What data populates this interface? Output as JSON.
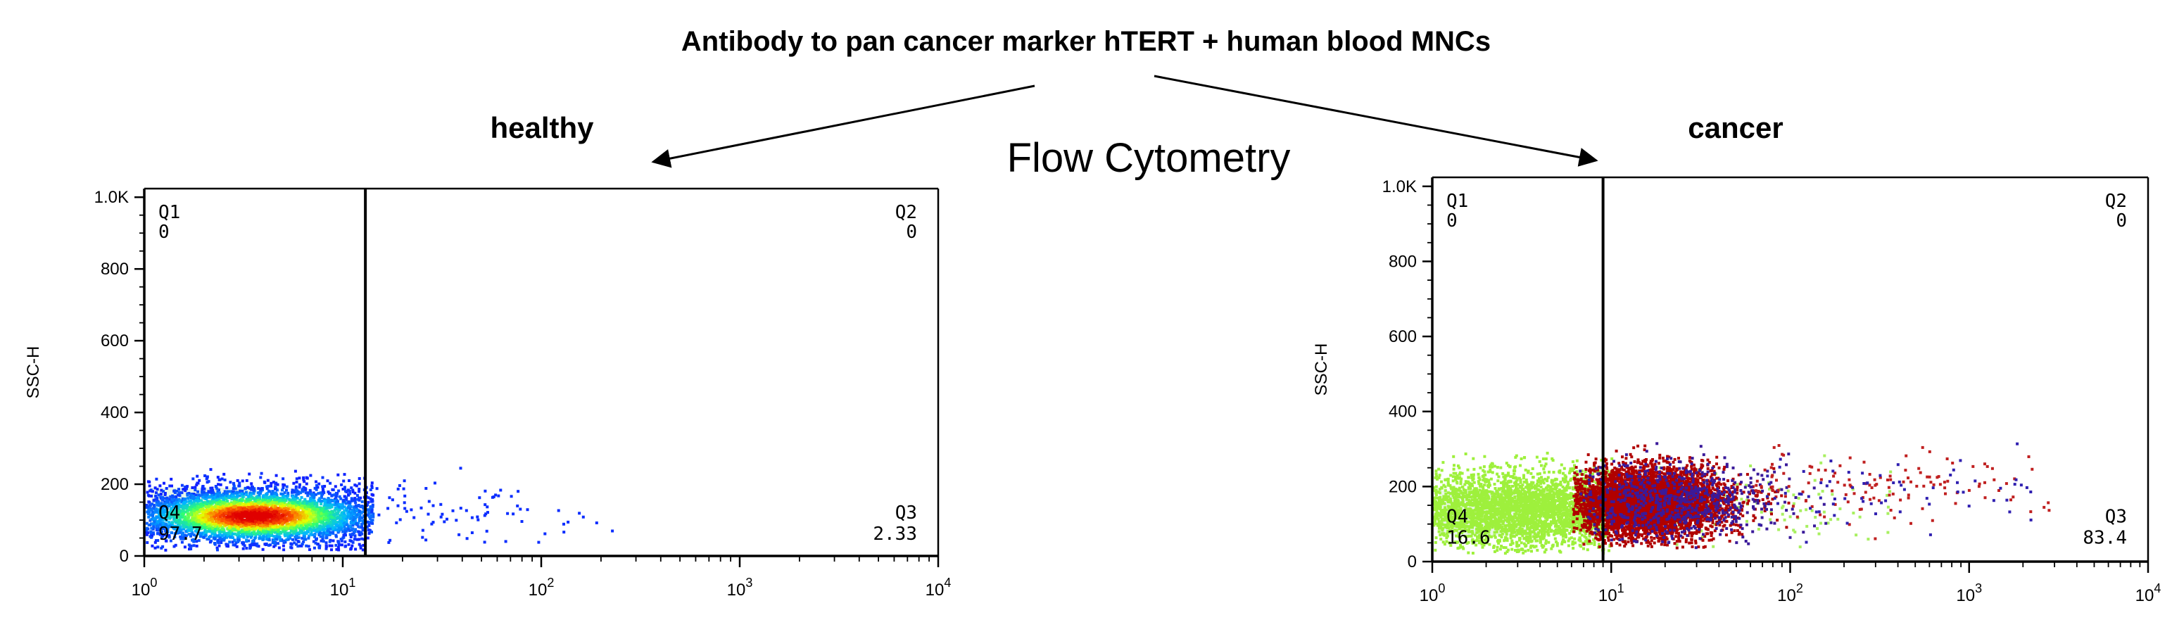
{
  "figure": {
    "header": "Antibody to pan cancer marker hTERT + human blood MNCs",
    "method_label": "Flow Cytometry",
    "colors": {
      "axis": "#000000",
      "gate_fill": "#e8f6e8"
    }
  },
  "chart_data": [
    {
      "type": "scatter",
      "title": "healthy",
      "ylabel": "SSC-H",
      "xlabel": "",
      "xscale": "log",
      "xlim": [
        1,
        10000
      ],
      "ylim": [
        0,
        1024
      ],
      "x_ticks": [
        1,
        10,
        100,
        1000,
        10000
      ],
      "x_tick_labels": [
        {
          "base": "10",
          "exp": "0"
        },
        {
          "base": "10",
          "exp": "1"
        },
        {
          "base": "10",
          "exp": "2"
        },
        {
          "base": "10",
          "exp": "3"
        },
        {
          "base": "10",
          "exp": "4"
        }
      ],
      "y_ticks": [
        0,
        200,
        400,
        600,
        800,
        1000
      ],
      "y_tick_labels": [
        "0",
        "200",
        "400",
        "600",
        "800",
        "1.0K"
      ],
      "gate": {
        "x": 13,
        "y": 0
      },
      "quadrants": [
        {
          "id": "Q1",
          "value": "0",
          "placement": "top-left"
        },
        {
          "id": "Q2",
          "value": "0",
          "placement": "top-right"
        },
        {
          "id": "Q3",
          "value": "2.33",
          "placement": "bottom-right"
        },
        {
          "id": "Q4",
          "value": "97.7",
          "placement": "bottom-left"
        }
      ],
      "populations": [
        {
          "kind": "density",
          "center_log_x": 0.55,
          "spread_log_x": 0.34,
          "center_y": 115,
          "spread_y": 42,
          "count": 4200,
          "min_log_x": 0.0,
          "max_log_x": 1.15,
          "min_y": 20,
          "max_y": 250,
          "colormap": [
            "#1020ff",
            "#00b8ff",
            "#30ff70",
            "#e8ff00",
            "#ff6000",
            "#e00000"
          ]
        },
        {
          "kind": "sparse",
          "center_log_x": 1.4,
          "spread_log_x": 0.35,
          "center_y": 130,
          "spread_y": 45,
          "count": 80,
          "min_log_x": 1.12,
          "max_log_x": 2.6,
          "min_y": 40,
          "max_y": 260,
          "color": "#0b2dff"
        }
      ]
    },
    {
      "type": "scatter",
      "title": "cancer",
      "ylabel": "SSC-H",
      "xlabel": "",
      "xscale": "log",
      "xlim": [
        1,
        10000
      ],
      "ylim": [
        0,
        1024
      ],
      "x_ticks": [
        1,
        10,
        100,
        1000,
        10000
      ],
      "x_tick_labels": [
        {
          "base": "10",
          "exp": "0"
        },
        {
          "base": "10",
          "exp": "1"
        },
        {
          "base": "10",
          "exp": "2"
        },
        {
          "base": "10",
          "exp": "3"
        },
        {
          "base": "10",
          "exp": "4"
        }
      ],
      "y_ticks": [
        0,
        200,
        400,
        600,
        800,
        1000
      ],
      "y_tick_labels": [
        "0",
        "200",
        "400",
        "600",
        "800",
        "1.0K"
      ],
      "gate": {
        "x": 9,
        "y": 0
      },
      "quadrants": [
        {
          "id": "Q1",
          "value": "0",
          "placement": "top-left"
        },
        {
          "id": "Q2",
          "value": "0",
          "placement": "top-right"
        },
        {
          "id": "Q3",
          "value": "83.4",
          "placement": "bottom-right"
        },
        {
          "id": "Q4",
          "value": "16.6",
          "placement": "bottom-left"
        }
      ],
      "populations": [
        {
          "kind": "sparse",
          "center_log_x": 0.5,
          "spread_log_x": 0.4,
          "center_y": 140,
          "spread_y": 55,
          "count": 3200,
          "min_log_x": 0.0,
          "max_log_x": 1.0,
          "min_y": 25,
          "max_y": 300,
          "color": "#9ef03c"
        },
        {
          "kind": "sparse",
          "center_log_x": 1.6,
          "spread_log_x": 0.5,
          "center_y": 150,
          "spread_y": 60,
          "count": 120,
          "min_log_x": 1.0,
          "max_log_x": 2.6,
          "min_y": 40,
          "max_y": 320,
          "color": "#a8f060"
        },
        {
          "kind": "sparse",
          "center_log_x": 1.2,
          "spread_log_x": 0.2,
          "center_y": 160,
          "spread_y": 45,
          "count": 5200,
          "min_log_x": 0.78,
          "max_log_x": 2.0,
          "min_y": 40,
          "max_y": 320,
          "color": "#b00000"
        },
        {
          "kind": "sparse",
          "center_log_x": 1.35,
          "spread_log_x": 0.28,
          "center_y": 165,
          "spread_y": 55,
          "count": 700,
          "min_log_x": 0.8,
          "max_log_x": 2.2,
          "min_y": 40,
          "max_y": 330,
          "color": "#3a1a9a"
        },
        {
          "kind": "sparse",
          "center_log_x": 2.3,
          "spread_log_x": 0.65,
          "center_y": 210,
          "spread_y": 55,
          "count": 130,
          "min_log_x": 1.8,
          "max_log_x": 3.45,
          "min_y": 60,
          "max_y": 320,
          "color": "#c02020"
        },
        {
          "kind": "sparse",
          "center_log_x": 2.4,
          "spread_log_x": 0.6,
          "center_y": 190,
          "spread_y": 55,
          "count": 70,
          "min_log_x": 1.8,
          "max_log_x": 3.35,
          "min_y": 50,
          "max_y": 320,
          "color": "#3020b0"
        }
      ]
    }
  ]
}
